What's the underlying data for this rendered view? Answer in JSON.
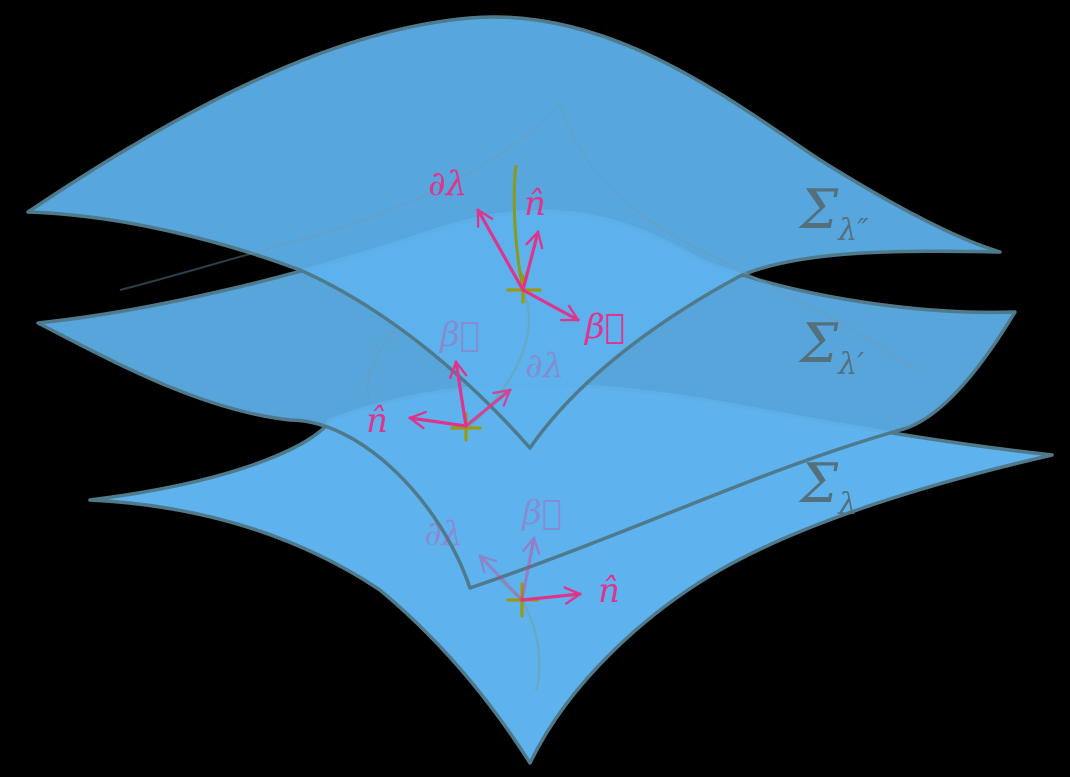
{
  "colors": {
    "background": "#000000",
    "surface_fill": "#5eb3ee",
    "surface_edge": "#4f7a8c",
    "vector": "#e0338b",
    "worldline": "#8a9a1a",
    "surface_label": "#53707c"
  },
  "surfaces": [
    {
      "symbol": "Σ",
      "subscript": "λ″"
    },
    {
      "symbol": "Σ",
      "subscript": "λ′"
    },
    {
      "symbol": "Σ",
      "subscript": "λ"
    }
  ],
  "vectors": {
    "partial_lambda": "∂λ",
    "normal": "n̂",
    "shift": "β⃗"
  }
}
